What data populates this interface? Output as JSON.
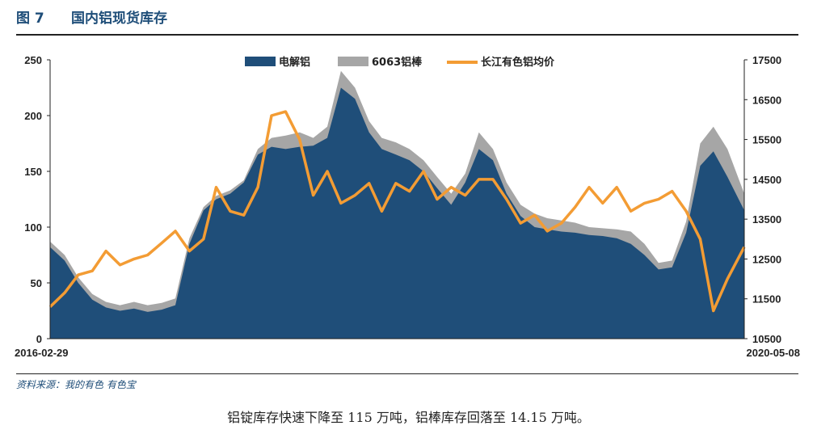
{
  "figure": {
    "number": "图 7",
    "title": "国内铝现货库存",
    "source": "资料来源：我的有色 有色宝",
    "caption": "铝锭库存快速下降至 115 万吨，铝棒库存回落至 14.15 万吨。"
  },
  "chart_data": {
    "type": "area",
    "x_start": "2016-02-29",
    "x_end": "2020-05-08",
    "x_tick_labels": [
      "2016-02-29",
      "2020-05-08"
    ],
    "y_left": {
      "min": 0,
      "max": 250,
      "ticks": [
        0,
        50,
        100,
        150,
        200,
        250
      ]
    },
    "y_right": {
      "min": 10500,
      "max": 17500,
      "ticks": [
        10500,
        11500,
        12500,
        13500,
        14500,
        15500,
        16500,
        17500
      ]
    },
    "legend_position": "top-center",
    "grid": false,
    "x": [
      "2016-02-29",
      "2016-04-01",
      "2016-05-01",
      "2016-06-01",
      "2016-07-01",
      "2016-08-01",
      "2016-09-01",
      "2016-10-01",
      "2016-11-01",
      "2016-12-01",
      "2017-01-01",
      "2017-02-01",
      "2017-03-01",
      "2017-04-01",
      "2017-05-01",
      "2017-06-01",
      "2017-07-01",
      "2017-08-01",
      "2017-09-01",
      "2017-10-01",
      "2017-11-01",
      "2017-12-01",
      "2018-01-01",
      "2018-02-01",
      "2018-03-01",
      "2018-04-01",
      "2018-05-01",
      "2018-06-01",
      "2018-07-01",
      "2018-08-01",
      "2018-09-01",
      "2018-10-01",
      "2018-11-01",
      "2018-12-01",
      "2019-01-01",
      "2019-02-01",
      "2019-03-01",
      "2019-04-01",
      "2019-05-01",
      "2019-06-01",
      "2019-07-01",
      "2019-08-01",
      "2019-09-01",
      "2019-10-01",
      "2019-11-01",
      "2019-12-01",
      "2020-01-01",
      "2020-02-01",
      "2020-03-01",
      "2020-04-01",
      "2020-05-08"
    ],
    "series": [
      {
        "name": "电解铝",
        "axis": "left",
        "color": "#1f4e79",
        "values": [
          82,
          70,
          50,
          35,
          28,
          25,
          27,
          24,
          26,
          30,
          85,
          115,
          125,
          130,
          140,
          165,
          172,
          170,
          172,
          173,
          180,
          225,
          215,
          185,
          170,
          165,
          160,
          150,
          135,
          120,
          140,
          170,
          160,
          130,
          110,
          100,
          98,
          96,
          95,
          93,
          92,
          90,
          85,
          75,
          62,
          64,
          95,
          155,
          168,
          145,
          115
        ]
      },
      {
        "name": "6063铝棒",
        "axis": "left",
        "color": "#a6a6a6",
        "values": [
          87,
          75,
          55,
          40,
          33,
          30,
          33,
          30,
          32,
          36,
          90,
          118,
          128,
          133,
          142,
          170,
          180,
          182,
          185,
          180,
          190,
          240,
          225,
          195,
          180,
          176,
          170,
          160,
          145,
          130,
          148,
          185,
          170,
          140,
          120,
          112,
          108,
          106,
          104,
          100,
          99,
          98,
          96,
          85,
          68,
          70,
          105,
          175,
          190,
          170,
          130
        ]
      },
      {
        "name": "长江有色铝均价",
        "axis": "right",
        "color": "#f39c34",
        "values": [
          11300,
          11650,
          12100,
          12200,
          12700,
          12350,
          12500,
          12600,
          12900,
          13200,
          12700,
          13000,
          14300,
          13700,
          13600,
          14300,
          16100,
          16200,
          15500,
          14100,
          14700,
          13900,
          14100,
          14400,
          13700,
          14400,
          14200,
          14700,
          14000,
          14300,
          14100,
          14500,
          14500,
          14000,
          13400,
          13600,
          13200,
          13400,
          13800,
          14300,
          13900,
          14300,
          13700,
          13900,
          14000,
          14200,
          13700,
          13000,
          11200,
          12000,
          12800
        ]
      }
    ]
  }
}
